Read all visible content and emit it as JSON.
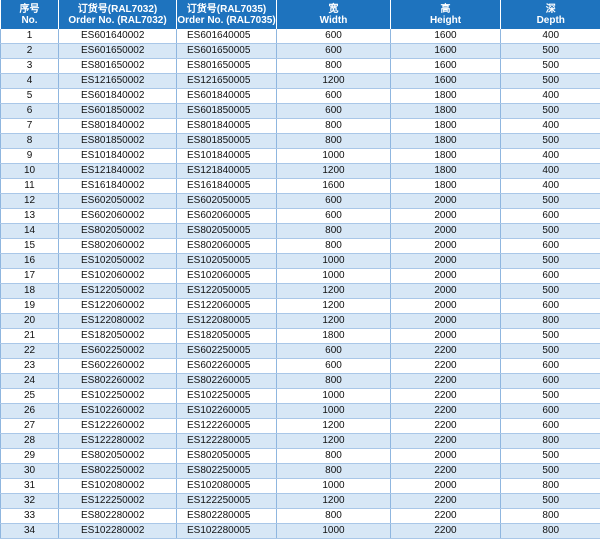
{
  "table": {
    "header": [
      [
        "序号",
        "No."
      ],
      [
        "订货号(RAL7032)",
        "Order No. (RAL7032)"
      ],
      [
        "订货号(RAL7035)",
        "Order No. (RAL7035)"
      ],
      [
        "宽",
        "Width"
      ],
      [
        "高",
        "Height"
      ],
      [
        "深",
        "Depth"
      ]
    ],
    "rows": [
      [
        "1",
        "ES601640002",
        "ES601640005",
        "600",
        "1600",
        "400"
      ],
      [
        "2",
        "ES601650002",
        "ES601650005",
        "600",
        "1600",
        "500"
      ],
      [
        "3",
        "ES801650002",
        "ES801650005",
        "800",
        "1600",
        "500"
      ],
      [
        "4",
        "ES121650002",
        "ES121650005",
        "1200",
        "1600",
        "500"
      ],
      [
        "5",
        "ES601840002",
        "ES601840005",
        "600",
        "1800",
        "400"
      ],
      [
        "6",
        "ES601850002",
        "ES601850005",
        "600",
        "1800",
        "500"
      ],
      [
        "7",
        "ES801840002",
        "ES801840005",
        "800",
        "1800",
        "400"
      ],
      [
        "8",
        "ES801850002",
        "ES801850005",
        "800",
        "1800",
        "500"
      ],
      [
        "9",
        "ES101840002",
        "ES101840005",
        "1000",
        "1800",
        "400"
      ],
      [
        "10",
        "ES121840002",
        "ES121840005",
        "1200",
        "1800",
        "400"
      ],
      [
        "11",
        "ES161840002",
        "ES161840005",
        "1600",
        "1800",
        "400"
      ],
      [
        "12",
        "ES602050002",
        "ES602050005",
        "600",
        "2000",
        "500"
      ],
      [
        "13",
        "ES602060002",
        "ES602060005",
        "600",
        "2000",
        "600"
      ],
      [
        "14",
        "ES802050002",
        "ES802050005",
        "800",
        "2000",
        "500"
      ],
      [
        "15",
        "ES802060002",
        "ES802060005",
        "800",
        "2000",
        "600"
      ],
      [
        "16",
        "ES102050002",
        "ES102050005",
        "1000",
        "2000",
        "500"
      ],
      [
        "17",
        "ES102060002",
        "ES102060005",
        "1000",
        "2000",
        "600"
      ],
      [
        "18",
        "ES122050002",
        "ES122050005",
        "1200",
        "2000",
        "500"
      ],
      [
        "19",
        "ES122060002",
        "ES122060005",
        "1200",
        "2000",
        "600"
      ],
      [
        "20",
        "ES122080002",
        "ES122080005",
        "1200",
        "2000",
        "800"
      ],
      [
        "21",
        "ES182050002",
        "ES182050005",
        "1800",
        "2000",
        "500"
      ],
      [
        "22",
        "ES602250002",
        "ES602250005",
        "600",
        "2200",
        "500"
      ],
      [
        "23",
        "ES602260002",
        "ES602260005",
        "600",
        "2200",
        "600"
      ],
      [
        "24",
        "ES802260002",
        "ES802260005",
        "800",
        "2200",
        "600"
      ],
      [
        "25",
        "ES102250002",
        "ES102250005",
        "1000",
        "2200",
        "500"
      ],
      [
        "26",
        "ES102260002",
        "ES102260005",
        "1000",
        "2200",
        "600"
      ],
      [
        "27",
        "ES122260002",
        "ES122260005",
        "1200",
        "2200",
        "600"
      ],
      [
        "28",
        "ES122280002",
        "ES122280005",
        "1200",
        "2200",
        "800"
      ],
      [
        "29",
        "ES802050002",
        "ES802050005",
        "800",
        "2000",
        "500"
      ],
      [
        "30",
        "ES802250002",
        "ES802250005",
        "800",
        "2200",
        "500"
      ],
      [
        "31",
        "ES102080002",
        "ES102080005",
        "1000",
        "2000",
        "800"
      ],
      [
        "32",
        "ES122250002",
        "ES122250005",
        "1200",
        "2200",
        "500"
      ],
      [
        "33",
        "ES802280002",
        "ES802280005",
        "800",
        "2200",
        "800"
      ],
      [
        "34",
        "ES102280002",
        "ES102280005",
        "1000",
        "2200",
        "800"
      ]
    ]
  }
}
